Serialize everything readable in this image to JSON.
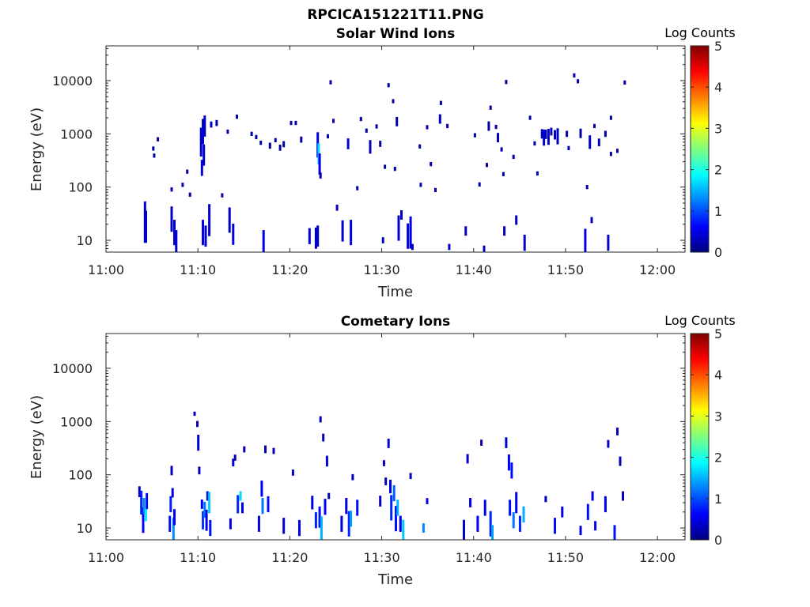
{
  "figure_title": "RPCICA151221T11.PNG",
  "colors": {
    "colormap": [
      "#00007f",
      "#0000ff",
      "#007fff",
      "#00ffff",
      "#7fff7f",
      "#ffff00",
      "#ff7f00",
      "#ff0000",
      "#7f0000"
    ],
    "axis": "#262626"
  },
  "chart_data": [
    {
      "type": "heatmap",
      "title": "Solar Wind Ions",
      "xlabel": "Time",
      "ylabel": "Energy (eV)",
      "x_unit": "minutes after 11:00",
      "xlim": [
        0,
        63
      ],
      "x_ticks": [
        0,
        10,
        20,
        30,
        40,
        50,
        60
      ],
      "x_tick_labels": [
        "11:00",
        "11:10",
        "11:20",
        "11:30",
        "11:40",
        "11:50",
        "12:00"
      ],
      "ylog": true,
      "ylim": [
        6,
        45000
      ],
      "y_ticks": [
        10,
        100,
        1000,
        10000
      ],
      "y_tick_labels": [
        "10",
        "100",
        "1000",
        "10000"
      ],
      "colorbar": {
        "label": "Log Counts",
        "range": [
          0,
          5
        ],
        "ticks": [
          "0",
          "1",
          "2",
          "3",
          "4",
          "5"
        ]
      },
      "cells": [
        [
          4.2,
          22,
          6,
          0.4
        ],
        [
          4.3,
          18,
          4,
          0.3
        ],
        [
          5.1,
          530,
          1.2,
          0.2
        ],
        [
          5.2,
          390,
          1.2,
          0.2
        ],
        [
          5.6,
          790,
          1.2,
          0.2
        ],
        [
          7.1,
          90,
          1.2,
          0.3
        ],
        [
          7.1,
          25,
          3,
          0.3
        ],
        [
          7.4,
          14,
          3,
          0.4
        ],
        [
          7.6,
          9,
          3,
          0.4
        ],
        [
          8.3,
          110,
          1.2,
          0.2
        ],
        [
          8.8,
          195,
          1.2,
          0.2
        ],
        [
          9.1,
          72,
          1.2,
          0.2
        ],
        [
          10.3,
          700,
          3.5,
          0.4
        ],
        [
          10.5,
          1100,
          3,
          0.4
        ],
        [
          10.6,
          400,
          2.5,
          0.4
        ],
        [
          10.7,
          1400,
          2.5,
          0.3
        ],
        [
          10.4,
          230,
          2,
          0.4
        ],
        [
          10.5,
          14,
          3,
          0.5
        ],
        [
          10.8,
          12,
          2.5,
          0.4
        ],
        [
          11.2,
          24,
          4,
          0.4
        ],
        [
          11.4,
          1500,
          1.3,
          0.3
        ],
        [
          12.0,
          1600,
          1.3,
          0.2
        ],
        [
          12.6,
          70,
          1.2,
          0.2
        ],
        [
          13.2,
          1100,
          1.2,
          0.2
        ],
        [
          13.4,
          24,
          3,
          0.3
        ],
        [
          13.8,
          13,
          2.5,
          0.4
        ],
        [
          14.2,
          2100,
          1.2,
          0.2
        ],
        [
          15.8,
          1000,
          1.2,
          0.2
        ],
        [
          16.3,
          870,
          1.2,
          0.2
        ],
        [
          16.8,
          680,
          1.2,
          0.2
        ],
        [
          17.1,
          9,
          3,
          0.5
        ],
        [
          17.8,
          600,
          1.3,
          0.2
        ],
        [
          18.4,
          760,
          1.2,
          0.2
        ],
        [
          18.9,
          550,
          1.3,
          0.2
        ],
        [
          19.3,
          640,
          1.3,
          0.2
        ],
        [
          20.1,
          1600,
          1.2,
          0.2
        ],
        [
          20.6,
          1600,
          1.2,
          0.2
        ],
        [
          21.2,
          780,
          1.3,
          0.2
        ],
        [
          22.1,
          12,
          2,
          0.4
        ],
        [
          22.8,
          11,
          2.5,
          0.3
        ],
        [
          23.0,
          620,
          3,
          0.5
        ],
        [
          23.1,
          420,
          2.5,
          1.7
        ],
        [
          23.2,
          270,
          2.5,
          0.5
        ],
        [
          23.0,
          12,
          2.5,
          0.4
        ],
        [
          23.3,
          165,
          1.3,
          0.2
        ],
        [
          24.1,
          900,
          1.2,
          0.2
        ],
        [
          24.4,
          9300,
          1.2,
          0.2
        ],
        [
          24.7,
          1750,
          1.2,
          0.2
        ],
        [
          25.1,
          41,
          1.3,
          0.3
        ],
        [
          25.7,
          15,
          2.5,
          0.4
        ],
        [
          26.3,
          650,
          1.6,
          0.4
        ],
        [
          26.6,
          14,
          3,
          0.5
        ],
        [
          27.3,
          95,
          1.2,
          0.2
        ],
        [
          27.7,
          1900,
          1.2,
          0.2
        ],
        [
          28.3,
          1150,
          1.2,
          0.2
        ],
        [
          28.7,
          570,
          1.8,
          0.3
        ],
        [
          29.4,
          1380,
          1.2,
          0.2
        ],
        [
          29.8,
          650,
          1.3,
          0.2
        ],
        [
          30.1,
          10,
          1.3,
          0.3
        ],
        [
          30.3,
          240,
          1.2,
          0.2
        ],
        [
          30.7,
          8200,
          1.2,
          0.2
        ],
        [
          31.4,
          220,
          1.2,
          0.2
        ],
        [
          31.6,
          1700,
          1.5,
          0.2
        ],
        [
          31.2,
          4100,
          1.2,
          0.2
        ],
        [
          31.8,
          17,
          3,
          0.4
        ],
        [
          32.1,
          30,
          1.5,
          0.3
        ],
        [
          32.8,
          12,
          3,
          0.5
        ],
        [
          33.1,
          14,
          4,
          0.5
        ],
        [
          33.3,
          7.5,
          1.3,
          0.3
        ],
        [
          34.1,
          580,
          1.2,
          0.2
        ],
        [
          34.2,
          110,
          1.2,
          0.2
        ],
        [
          34.9,
          1330,
          1.2,
          0.2
        ],
        [
          35.3,
          270,
          1.2,
          0.2
        ],
        [
          35.8,
          88,
          1.2,
          0.2
        ],
        [
          36.3,
          1900,
          1.5,
          0.3
        ],
        [
          36.4,
          3800,
          1.2,
          0.2
        ],
        [
          37.1,
          1400,
          1.2,
          0.2
        ],
        [
          37.3,
          7.5,
          1.3,
          0.3
        ],
        [
          39.1,
          15,
          1.5,
          0.3
        ],
        [
          40.1,
          940,
          1.2,
          0.2
        ],
        [
          40.6,
          112,
          1.2,
          0.2
        ],
        [
          41.1,
          7,
          1.3,
          0.3
        ],
        [
          41.4,
          260,
          1.2,
          0.2
        ],
        [
          41.6,
          1400,
          1.5,
          0.2
        ],
        [
          41.8,
          3100,
          1.2,
          0.2
        ],
        [
          42.4,
          1350,
          1.2,
          0.2
        ],
        [
          42.6,
          850,
          1.5,
          0.3
        ],
        [
          43.0,
          510,
          1.2,
          0.2
        ],
        [
          43.3,
          15,
          1.5,
          0.3
        ],
        [
          43.5,
          9400,
          1.2,
          0.2
        ],
        [
          43.2,
          175,
          1.2,
          0.2
        ],
        [
          44.3,
          370,
          1.2,
          0.2
        ],
        [
          44.6,
          24,
          1.5,
          0.3
        ],
        [
          45.5,
          9,
          2,
          0.4
        ],
        [
          46.1,
          2000,
          1.2,
          0.2
        ],
        [
          46.6,
          660,
          1.2,
          0.2
        ],
        [
          46.9,
          180,
          1.2,
          0.2
        ],
        [
          47.4,
          1000,
          1.5,
          0.3
        ],
        [
          47.6,
          850,
          2,
          0.4
        ],
        [
          47.8,
          980,
          1.5,
          0.3
        ],
        [
          48.1,
          880,
          2,
          0.3
        ],
        [
          48.4,
          1100,
          1.4,
          0.3
        ],
        [
          48.8,
          960,
          1.5,
          0.3
        ],
        [
          49.1,
          900,
          2,
          0.3
        ],
        [
          50.1,
          1000,
          1.3,
          0.2
        ],
        [
          50.3,
          540,
          1.2,
          0.2
        ],
        [
          50.9,
          12500,
          1.2,
          0.2
        ],
        [
          51.3,
          9700,
          1.2,
          0.2
        ],
        [
          51.6,
          1020,
          1.5,
          0.2
        ],
        [
          52.1,
          9.5,
          3,
          0.5
        ],
        [
          52.3,
          100,
          1.2,
          0.2
        ],
        [
          52.6,
          700,
          1.8,
          0.4
        ],
        [
          52.8,
          24,
          1.3,
          0.3
        ],
        [
          53.1,
          1400,
          1.2,
          0.2
        ],
        [
          53.6,
          690,
          1.4,
          0.3
        ],
        [
          54.3,
          1000,
          1.3,
          0.2
        ],
        [
          54.6,
          9,
          2,
          0.4
        ],
        [
          54.9,
          2000,
          1.2,
          0.2
        ],
        [
          54.9,
          420,
          1.2,
          0.2
        ],
        [
          55.6,
          480,
          1.2,
          0.2
        ],
        [
          56.4,
          9200,
          1.2,
          0.2
        ]
      ]
    },
    {
      "type": "heatmap",
      "title": "Cometary Ions",
      "xlabel": "Time",
      "ylabel": "Energy (eV)",
      "x_unit": "minutes after 11:00",
      "xlim": [
        0,
        63
      ],
      "x_ticks": [
        0,
        10,
        20,
        30,
        40,
        50,
        60
      ],
      "x_tick_labels": [
        "11:00",
        "11:10",
        "11:20",
        "11:30",
        "11:40",
        "11:50",
        "12:00"
      ],
      "ylog": true,
      "ylim": [
        6,
        45000
      ],
      "y_ticks": [
        10,
        100,
        1000,
        10000
      ],
      "y_tick_labels": [
        "10",
        "100",
        "1000",
        "10000"
      ],
      "colorbar": {
        "label": "Log Counts",
        "range": [
          0,
          5
        ],
        "ticks": [
          "0",
          "1",
          "2",
          "3",
          "4",
          "5"
        ]
      },
      "cells": [
        [
          3.6,
          48,
          1.6,
          0.3
        ],
        [
          3.8,
          30,
          2.8,
          0.8
        ],
        [
          4.0,
          14,
          3,
          0.6
        ],
        [
          4.1,
          26,
          2,
          1.3
        ],
        [
          4.3,
          18,
          1.8,
          1.8
        ],
        [
          4.4,
          32,
          2,
          0.7
        ],
        [
          6.9,
          12,
          2,
          0.7
        ],
        [
          7.0,
          28,
          2,
          0.8
        ],
        [
          7.1,
          120,
          1.5,
          0.3
        ],
        [
          7.2,
          46,
          1.5,
          0.5
        ],
        [
          7.3,
          9,
          3,
          1.3
        ],
        [
          7.4,
          16,
          2,
          0.6
        ],
        [
          9.6,
          1400,
          1.2,
          0.3
        ],
        [
          9.9,
          900,
          1.3,
          0.3
        ],
        [
          10.0,
          400,
          2,
          0.4
        ],
        [
          10.1,
          120,
          1.4,
          0.3
        ],
        [
          10.4,
          28,
          1.5,
          0.6
        ],
        [
          10.5,
          14,
          2.2,
          0.9
        ],
        [
          10.7,
          22,
          2,
          1.2
        ],
        [
          10.9,
          14,
          2.5,
          0.6
        ],
        [
          11.0,
          40,
          1.5,
          0.5
        ],
        [
          11.2,
          30,
          2.5,
          1.6
        ],
        [
          11.3,
          10,
          2,
          0.7
        ],
        [
          13.5,
          12,
          1.6,
          0.5
        ],
        [
          13.8,
          170,
          1.4,
          0.4
        ],
        [
          14.0,
          210,
          1.3,
          0.3
        ],
        [
          14.3,
          28,
          2.2,
          0.8
        ],
        [
          14.6,
          40,
          1.5,
          1.7
        ],
        [
          14.8,
          24,
          1.6,
          0.5
        ],
        [
          15.0,
          300,
          1.3,
          0.3
        ],
        [
          16.6,
          12,
          2,
          0.4
        ],
        [
          16.9,
          55,
          2,
          0.6
        ],
        [
          17.0,
          26,
          2,
          1.2
        ],
        [
          17.3,
          300,
          1.4,
          0.3
        ],
        [
          17.6,
          28,
          2,
          0.7
        ],
        [
          18.2,
          280,
          1.3,
          0.3
        ],
        [
          19.3,
          11,
          2,
          0.4
        ],
        [
          20.3,
          110,
          1.3,
          0.3
        ],
        [
          21.0,
          10,
          2,
          0.5
        ],
        [
          22.4,
          30,
          1.8,
          0.5
        ],
        [
          22.8,
          14,
          2,
          0.8
        ],
        [
          23.2,
          16,
          2.5,
          0.7
        ],
        [
          23.3,
          1100,
          1.3,
          0.3
        ],
        [
          23.4,
          9.5,
          3,
          1.5
        ],
        [
          23.6,
          500,
          1.4,
          0.3
        ],
        [
          23.8,
          25,
          2,
          0.6
        ],
        [
          24.0,
          180,
          1.6,
          0.4
        ],
        [
          24.2,
          40,
          1.3,
          0.3
        ],
        [
          25.6,
          12,
          2,
          0.4
        ],
        [
          26.1,
          26,
          2,
          0.5
        ],
        [
          26.4,
          12,
          3,
          0.8
        ],
        [
          26.6,
          15,
          2,
          1.4
        ],
        [
          26.8,
          90,
          1.3,
          0.3
        ],
        [
          27.3,
          24,
          2,
          0.7
        ],
        [
          29.8,
          32,
          1.6,
          0.4
        ],
        [
          30.2,
          165,
          1.3,
          0.3
        ],
        [
          30.4,
          75,
          1.4,
          0.3
        ],
        [
          30.7,
          390,
          1.5,
          0.4
        ],
        [
          30.9,
          60,
          1.8,
          0.5
        ],
        [
          31.0,
          24,
          3,
          0.8
        ],
        [
          31.3,
          45,
          2,
          1.1
        ],
        [
          31.5,
          15,
          3,
          0.7
        ],
        [
          31.7,
          24,
          2,
          1.5
        ],
        [
          32.0,
          12,
          2,
          0.6
        ],
        [
          32.3,
          9,
          2.5,
          1.6
        ],
        [
          33.1,
          95,
          1.3,
          0.3
        ],
        [
          34.5,
          10,
          1.5,
          1.3
        ],
        [
          34.9,
          32,
          1.3,
          0.5
        ],
        [
          38.9,
          9,
          2.5,
          0.4
        ],
        [
          39.3,
          200,
          1.5,
          0.4
        ],
        [
          39.6,
          30,
          1.5,
          0.5
        ],
        [
          40.4,
          12,
          2,
          0.6
        ],
        [
          40.8,
          400,
          1.3,
          0.3
        ],
        [
          41.2,
          24,
          2,
          0.5
        ],
        [
          41.8,
          12,
          3,
          0.8
        ],
        [
          42.0,
          8,
          2,
          1.4
        ],
        [
          43.5,
          400,
          1.6,
          0.4
        ],
        [
          43.8,
          170,
          2,
          0.6
        ],
        [
          43.9,
          24,
          2,
          0.7
        ],
        [
          44.1,
          120,
          2,
          0.7
        ],
        [
          44.3,
          14,
          2,
          1.2
        ],
        [
          44.6,
          30,
          2.5,
          0.6
        ],
        [
          45.0,
          12,
          2,
          0.8
        ],
        [
          45.4,
          18,
          2,
          1.5
        ],
        [
          47.8,
          35,
          1.3,
          0.3
        ],
        [
          48.8,
          11,
          2,
          0.7
        ],
        [
          49.6,
          20,
          1.6,
          0.5
        ],
        [
          51.6,
          9,
          1.5,
          0.5
        ],
        [
          52.4,
          20,
          2,
          0.7
        ],
        [
          52.9,
          40,
          1.5,
          0.5
        ],
        [
          53.2,
          11,
          1.5,
          0.6
        ],
        [
          54.3,
          28,
          2,
          0.5
        ],
        [
          54.6,
          380,
          1.4,
          0.3
        ],
        [
          55.3,
          8,
          2,
          0.7
        ],
        [
          55.6,
          650,
          1.4,
          0.3
        ],
        [
          55.9,
          180,
          1.5,
          0.3
        ],
        [
          56.2,
          40,
          1.5,
          0.4
        ]
      ]
    }
  ]
}
